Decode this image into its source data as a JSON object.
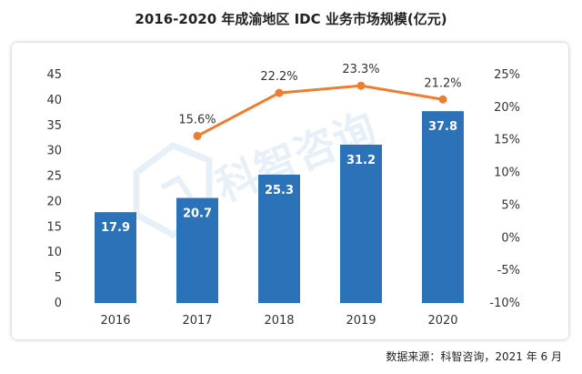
{
  "chart_data": {
    "type": "bar",
    "title": "2016-2020 年成渝地区 IDC 业务市场规模(亿元)",
    "categories": [
      "2016",
      "2017",
      "2018",
      "2019",
      "2020"
    ],
    "series": [
      {
        "values": [
          17.9,
          20.7,
          25.3,
          31.2,
          37.8
        ],
        "value_labels": [
          "17.9",
          "20.7",
          "25.3",
          "31.2",
          "37.8"
        ],
        "axis": "left",
        "type": "bar"
      },
      {
        "values": [
          null,
          15.6,
          22.2,
          23.3,
          21.2
        ],
        "value_labels": [
          "",
          "15.6%",
          "22.2%",
          "23.3%",
          "21.2%"
        ],
        "axis": "right",
        "type": "line"
      }
    ],
    "y_left": {
      "ylim": [
        0,
        45
      ],
      "ticks": [
        "0",
        "5",
        "10",
        "15",
        "20",
        "25",
        "30",
        "35",
        "40",
        "45"
      ]
    },
    "y_right": {
      "ylim": [
        -10,
        25
      ],
      "ticks": [
        "-10%",
        "-5%",
        "0%",
        "5%",
        "10%",
        "15%",
        "20%",
        "25%"
      ]
    },
    "grid": false,
    "legend": "none",
    "colors": {
      "bar": "#2b72b8",
      "line": "#ed7d31",
      "bar_label": "#ffffff",
      "axis_text": "#333333"
    }
  },
  "watermark": "科智咨询",
  "source": "数据来源：科智咨询，2021 年 6 月"
}
